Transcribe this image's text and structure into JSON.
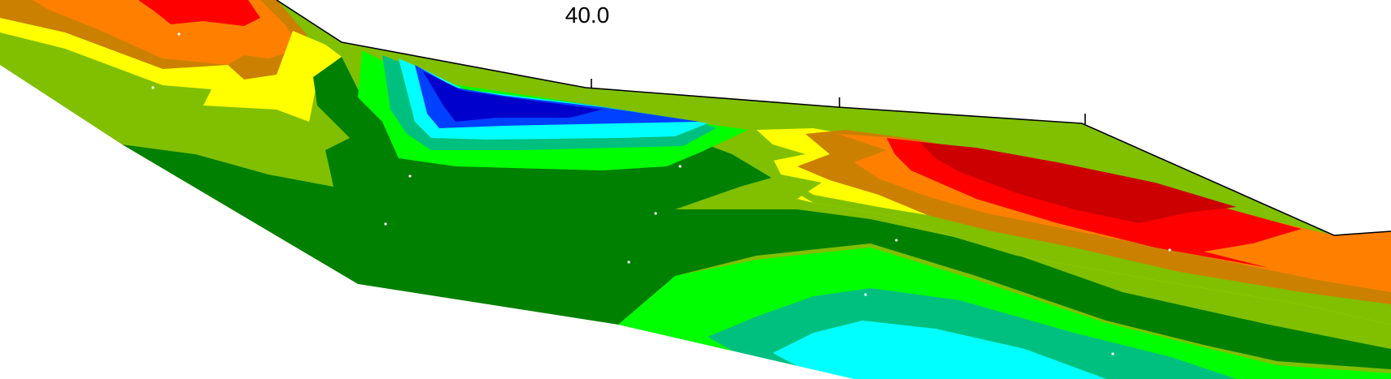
{
  "figure": {
    "axis": {
      "tick_labels": [
        "40.0"
      ]
    },
    "palette": {
      "red": "#ff0000",
      "dark_red": "#cc0000",
      "orange": "#ff8000",
      "ochre": "#cc8000",
      "yellow": "#ffff00",
      "olive": "#80c000",
      "dark_green": "#008000",
      "green": "#00ff00",
      "teal": "#00c080",
      "cyan": "#00ffff",
      "blue": "#0000ff",
      "medium_blue": "#0040ff",
      "navy": "#0000cc",
      "topography": "#000000",
      "electrode": "#ffffff",
      "background": "#ffffff"
    }
  }
}
